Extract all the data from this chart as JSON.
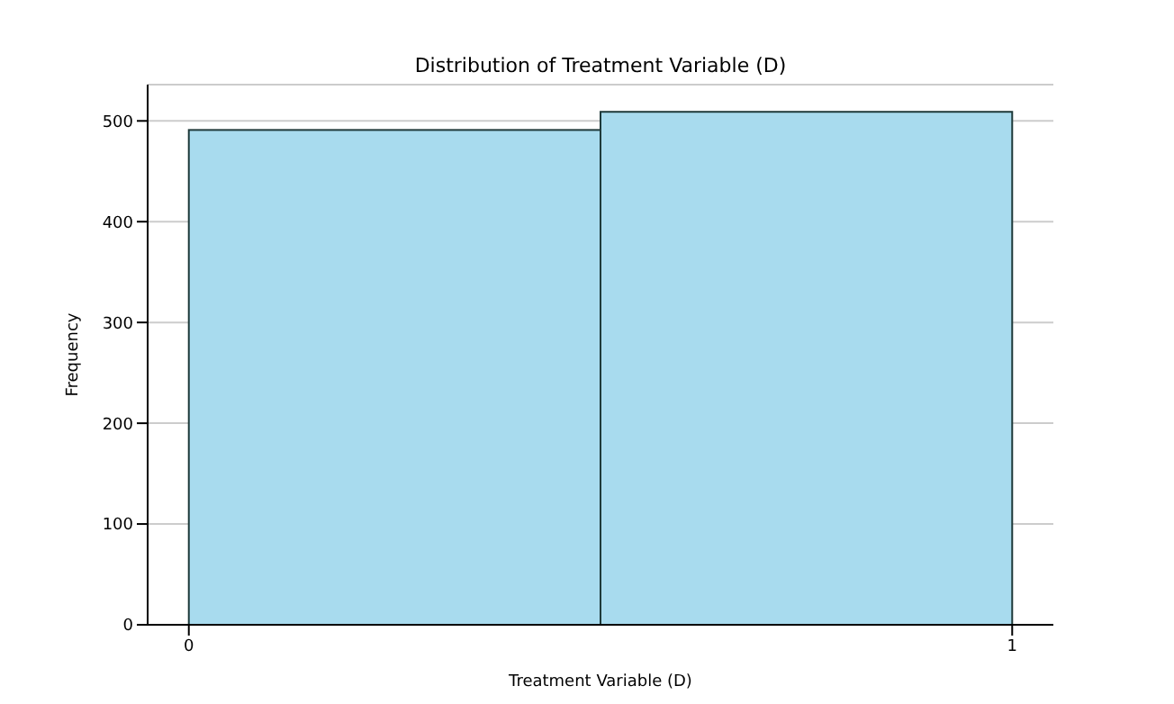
{
  "chart_data": {
    "type": "histogram",
    "title": "Distribution of Treatment Variable (D)",
    "xlabel": "Treatment Variable (D)",
    "ylabel": "Frequency",
    "bins": [
      0,
      0.5,
      1
    ],
    "values": [
      491,
      509
    ],
    "color": "#a8dbee",
    "xlim": [
      -0.05,
      1.05
    ],
    "xticks": [
      0,
      1
    ],
    "ylim": [
      0,
      536
    ],
    "yticks": [
      0,
      100,
      200,
      300,
      400,
      500
    ],
    "grid": "y"
  }
}
